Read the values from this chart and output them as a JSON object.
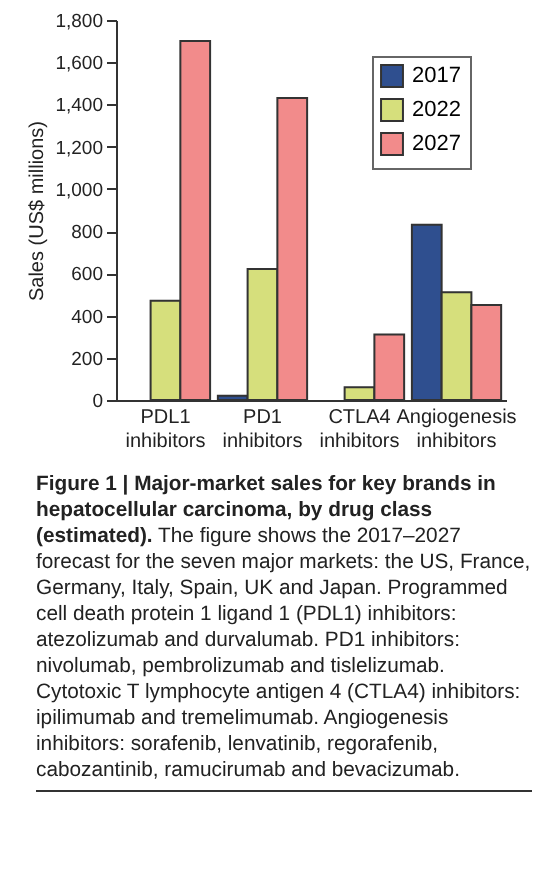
{
  "chart_data": {
    "type": "bar",
    "title": "Figure 1 | Major-market sales for key brands in hepatocellular carcinoma, by drug class (estimated).",
    "annotations": [
      "The figure shows the 2017–2027 forecast for the seven major markets: the US, France, Germany, Italy, Spain, UK and Japan. Programmed cell death protein 1 ligand 1 (PDL1) inhibitors: atezolizumab and durvalumab. PD1 inhibitors: nivolumab, pembrolizumab and tislelizumab. Cytotoxic T lymphocyte antigen 4 (CTLA4) inhibitors: ipilimumab and tremelimumab. Angiogenesis inhibitors: sorafenib, lenvatinib, regorafenib, cabozantinib, ramucirumab and bevacizumab."
    ],
    "ylabel": "Sales (US$ millions)",
    "categories": [
      "PDL1 inhibitors",
      "PD1 inhibitors",
      "CTLA4 inhibitors",
      "Angiogenesis inhibitors"
    ],
    "series": [
      {
        "name": "2017",
        "color": "#2f4f8f",
        "values": [
          null,
          20,
          null,
          830
        ]
      },
      {
        "name": "2022",
        "color": "#d6df7c",
        "values": [
          470,
          620,
          60,
          510
        ]
      },
      {
        "name": "2027",
        "color": "#f28b8b",
        "values": [
          1700,
          1430,
          310,
          450
        ]
      }
    ],
    "ylim": [
      0,
      1800
    ],
    "yticks": [
      0,
      200,
      400,
      600,
      800,
      {
        "value": 1000,
        "label": "1,000"
      },
      {
        "value": 1200,
        "label": "1,200"
      },
      {
        "value": 1400,
        "label": "1,400"
      },
      {
        "value": 1600,
        "label": "1,600"
      },
      {
        "value": 1800,
        "label": "1,800"
      }
    ],
    "legend": "top right"
  }
}
